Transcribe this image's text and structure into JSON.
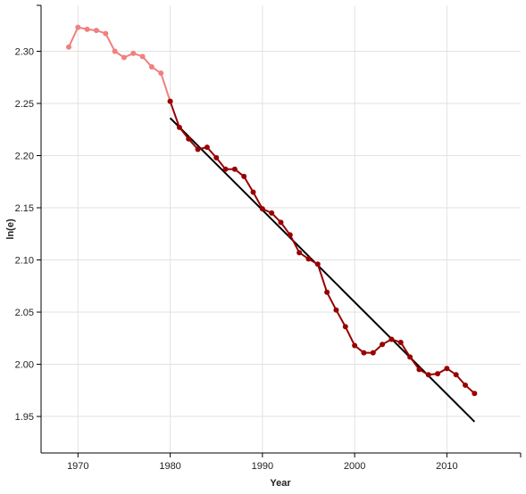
{
  "chart_data": {
    "type": "line",
    "xlabel": "Year",
    "ylabel": "ln(e)",
    "xlim": [
      1966,
      2018
    ],
    "ylim": [
      1.915,
      2.344
    ],
    "x_ticks": [
      1970,
      1980,
      1990,
      2000,
      2010
    ],
    "y_ticks": [
      1.95,
      2.0,
      2.05,
      2.1,
      2.15,
      2.2,
      2.25,
      2.3
    ],
    "grid": true,
    "series": [
      {
        "color": "#f08080",
        "x": [
          1969,
          1970,
          1971,
          1972,
          1973,
          1974,
          1975,
          1976,
          1977,
          1978,
          1979,
          1980
        ],
        "y": [
          2.304,
          2.323,
          2.321,
          2.32,
          2.317,
          2.3,
          2.294,
          2.298,
          2.295,
          2.285,
          2.279,
          2.252
        ]
      },
      {
        "color": "#990000",
        "x": [
          1980,
          1981,
          1982,
          1983,
          1984,
          1985,
          1986,
          1987,
          1988,
          1989,
          1990,
          1991,
          1992,
          1993,
          1994,
          1995,
          1996,
          1997,
          1998,
          1999,
          2000,
          2001,
          2002,
          2003,
          2004,
          2005,
          2006,
          2007,
          2008,
          2009,
          2010,
          2011,
          2012,
          2013
        ],
        "y": [
          2.252,
          2.227,
          2.216,
          2.206,
          2.208,
          2.198,
          2.187,
          2.187,
          2.18,
          2.165,
          2.149,
          2.145,
          2.136,
          2.124,
          2.107,
          2.101,
          2.096,
          2.069,
          2.052,
          2.036,
          2.018,
          2.011,
          2.011,
          2.019,
          2.024,
          2.021,
          2.007,
          1.995,
          1.99,
          1.991,
          1.996,
          1.99,
          1.98,
          1.972
        ]
      }
    ],
    "trend_line": {
      "color": "#000000",
      "x": [
        1980,
        2013
      ],
      "y": [
        2.236,
        1.945
      ]
    }
  }
}
